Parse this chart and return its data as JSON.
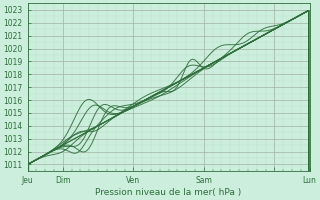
{
  "title": "",
  "xlabel": "Pression niveau de la mer( hPa )",
  "ylabel": "",
  "xlim": [
    0,
    96
  ],
  "ylim": [
    1010.5,
    1023.5
  ],
  "yticks": [
    1011,
    1012,
    1013,
    1014,
    1015,
    1016,
    1017,
    1018,
    1019,
    1020,
    1021,
    1022,
    1023
  ],
  "xtick_labels": [
    "Jeu",
    "Dim",
    "Ven",
    "Sam",
    "",
    "Lun"
  ],
  "xtick_positions": [
    0,
    12,
    36,
    60,
    84,
    96
  ],
  "background_color": "#cceedd",
  "grid_major_color": "#aabbaa",
  "grid_minor_color": "#bbddcc",
  "line_color": "#2d6e3a",
  "text_color": "#2d6e3a",
  "fig_bg": "#cceedd"
}
